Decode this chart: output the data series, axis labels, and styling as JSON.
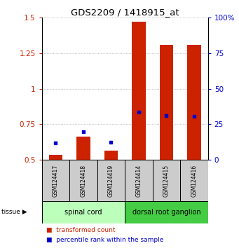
{
  "title": "GDS2209 / 1418915_at",
  "samples": [
    "GSM124417",
    "GSM124418",
    "GSM124419",
    "GSM124414",
    "GSM124415",
    "GSM124416"
  ],
  "red_values": [
    0.535,
    0.665,
    0.565,
    1.47,
    1.305,
    1.305
  ],
  "blue_values_left": [
    0.62,
    0.7,
    0.625,
    0.835,
    0.81,
    0.805
  ],
  "tissue_groups": [
    {
      "label": "spinal cord",
      "indices": [
        0,
        1,
        2
      ],
      "color": "#bbffbb"
    },
    {
      "label": "dorsal root ganglion",
      "indices": [
        3,
        4,
        5
      ],
      "color": "#44cc44"
    }
  ],
  "ylim_left": [
    0.5,
    1.5
  ],
  "ylim_right": [
    0,
    100
  ],
  "yticks_left": [
    0.5,
    0.75,
    1.0,
    1.25,
    1.5
  ],
  "yticks_right": [
    0,
    25,
    50,
    75,
    100
  ],
  "ytick_labels_left": [
    "0.5",
    "0.75",
    "1",
    "1.25",
    "1.5"
  ],
  "ytick_labels_right": [
    "0",
    "25",
    "50",
    "75",
    "100%"
  ],
  "left_axis_color": "#cc2200",
  "right_axis_color": "#0000cc",
  "bar_color": "#cc2200",
  "dot_color": "#0000cc",
  "grid_linestyle": ":",
  "grid_color": "#aaaaaa",
  "bar_width": 0.5,
  "tissue_label": "tissue",
  "legend_red_label": "transformed count",
  "legend_blue_label": "percentile rank within the sample",
  "sample_box_color": "#cccccc",
  "baseline": 0.5
}
